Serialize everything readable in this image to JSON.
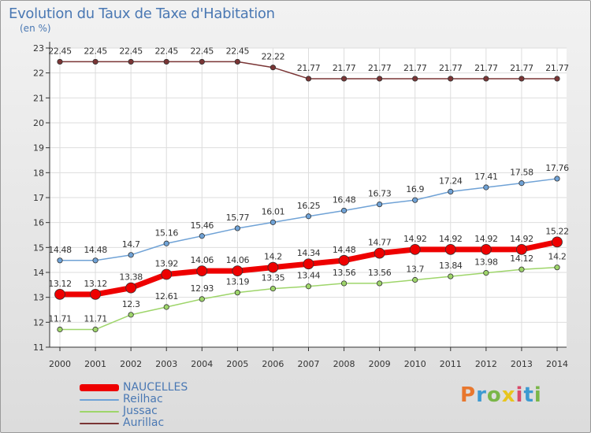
{
  "title": "Evolution du Taux de Taxe d'Habitation",
  "subtitle": "(en %)",
  "logo": {
    "text": "Proxiti",
    "colors": [
      "#e8772e",
      "#3d9ad1",
      "#7ab648",
      "#e8c51e",
      "#d94a6a",
      "#3d9ad1",
      "#7ab648"
    ]
  },
  "chart_data": {
    "type": "line",
    "title": "Evolution du Taux de Taxe d'Habitation",
    "ylabel": "(en %)",
    "xlabel": "",
    "categories": [
      "2000",
      "2001",
      "2002",
      "2003",
      "2004",
      "2005",
      "2006",
      "2007",
      "2008",
      "2009",
      "2010",
      "2011",
      "2012",
      "2013",
      "2014"
    ],
    "ylim": [
      11,
      23
    ],
    "yticks": [
      "11",
      "12",
      "13",
      "14",
      "15",
      "16",
      "17",
      "18",
      "19",
      "20",
      "21",
      "22",
      "23"
    ],
    "grid": true,
    "legend_position": "bottom-left",
    "series": [
      {
        "name": "NAUCELLES",
        "color": "#ee0000",
        "values": [
          13.12,
          13.12,
          13.38,
          13.92,
          14.06,
          14.06,
          14.2,
          14.34,
          14.48,
          14.77,
          14.92,
          14.92,
          14.92,
          14.92,
          15.22
        ],
        "labels": [
          "13.12",
          "13.12",
          "13.38",
          "13.92",
          "14.06",
          "14.06",
          "14.2",
          "14.34",
          "14.48",
          "14.77",
          "14.92",
          "14.92",
          "14.92",
          "14.92",
          "15.22"
        ]
      },
      {
        "name": "Reilhac",
        "color": "#6fa2d6",
        "values": [
          14.48,
          14.48,
          14.7,
          15.16,
          15.46,
          15.77,
          16.01,
          16.25,
          16.48,
          16.73,
          16.9,
          17.24,
          17.41,
          17.58,
          17.76
        ],
        "labels": [
          "14.48",
          "14.48",
          "14.7",
          "15.16",
          "15.46",
          "15.77",
          "16.01",
          "16.25",
          "16.48",
          "16.73",
          "16.9",
          "17.24",
          "17.41",
          "17.58",
          "17.76"
        ]
      },
      {
        "name": "Jussac",
        "color": "#9ed56a",
        "values": [
          11.71,
          11.71,
          12.3,
          12.61,
          12.93,
          13.19,
          13.35,
          13.44,
          13.56,
          13.56,
          13.7,
          13.84,
          13.98,
          14.12,
          14.2
        ],
        "labels": [
          "11.71",
          "11.71",
          "12.3",
          "12.61",
          "12.93",
          "13.19",
          "13.35",
          "13.44",
          "13.56",
          "13.56",
          "13.7",
          "13.84",
          "13.98",
          "14.12",
          "14.2"
        ]
      },
      {
        "name": "Aurillac",
        "color": "#7a3535",
        "values": [
          22.45,
          22.45,
          22.45,
          22.45,
          22.45,
          22.45,
          22.22,
          21.77,
          21.77,
          21.77,
          21.77,
          21.77,
          21.77,
          21.77,
          21.77
        ],
        "labels": [
          "22.45",
          "22.45",
          "22.45",
          "22.45",
          "22.45",
          "22.45",
          "22.22",
          "21.77",
          "21.77",
          "21.77",
          "21.77",
          "21.77",
          "21.77",
          "21.77",
          "21.77"
        ]
      }
    ]
  }
}
